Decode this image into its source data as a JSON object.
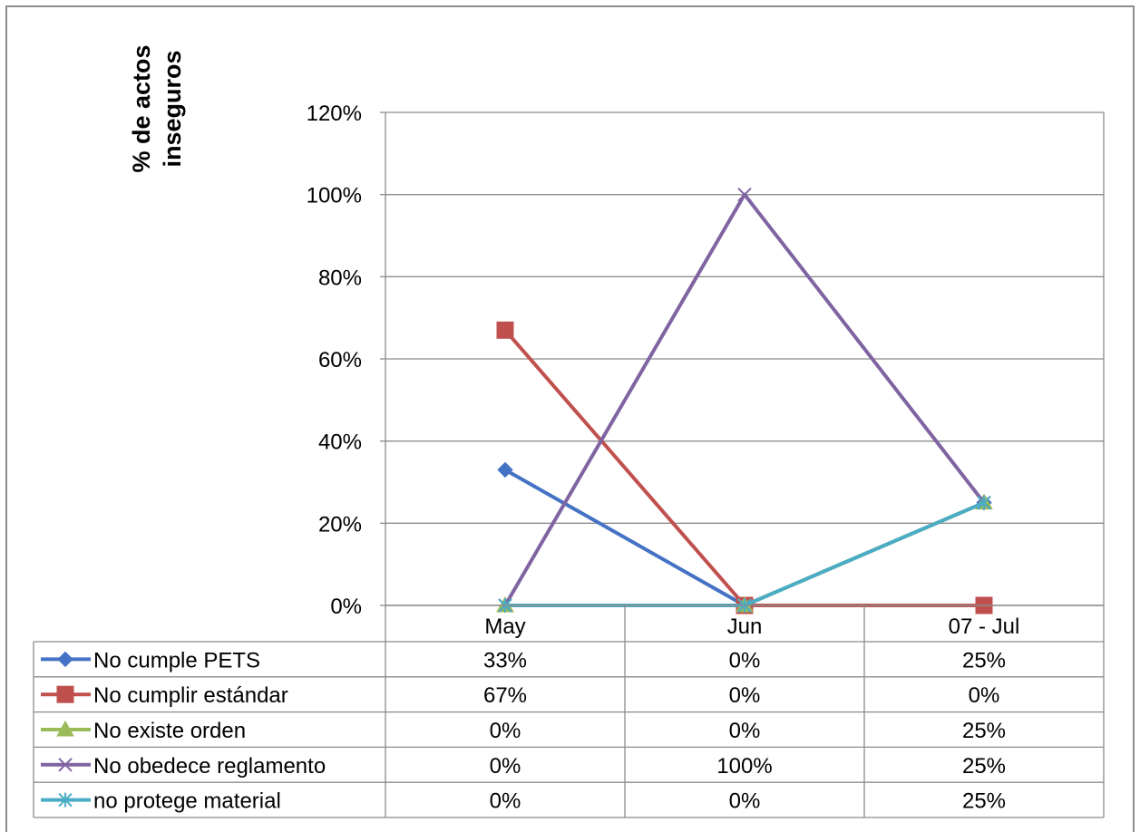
{
  "chart_data": {
    "type": "line",
    "title": "",
    "ylabel_lines": [
      "% de actos",
      "inseguros"
    ],
    "xlabel": "",
    "categories": [
      "May",
      "Jun",
      "07 - Jul"
    ],
    "ylim": [
      0,
      120
    ],
    "y_ticks": [
      0,
      20,
      40,
      60,
      80,
      100,
      120
    ],
    "y_tick_labels": [
      "0%",
      "20%",
      "40%",
      "60%",
      "80%",
      "100%",
      "120%"
    ],
    "grid": true,
    "legend": "data-table-below",
    "series": [
      {
        "name": "No cumple PETS",
        "values": [
          33,
          0,
          25
        ],
        "labels": [
          "33%",
          "0%",
          "25%"
        ],
        "color": "#4472C4",
        "marker": "diamond"
      },
      {
        "name": "No cumplir estándar",
        "values": [
          67,
          0,
          0
        ],
        "labels": [
          "67%",
          "0%",
          "0%"
        ],
        "color": "#C0504D",
        "marker": "square"
      },
      {
        "name": "No existe orden",
        "values": [
          0,
          0,
          25
        ],
        "labels": [
          "0%",
          "0%",
          "25%"
        ],
        "color": "#9BBB59",
        "marker": "triangle"
      },
      {
        "name": "No obedece reglamento",
        "values": [
          0,
          100,
          25
        ],
        "labels": [
          "0%",
          "100%",
          "25%"
        ],
        "color": "#8064A2",
        "marker": "x"
      },
      {
        "name": "no protege material",
        "values": [
          0,
          0,
          25
        ],
        "labels": [
          "0%",
          "0%",
          "25%"
        ],
        "color": "#4BACC6",
        "marker": "star"
      }
    ]
  }
}
